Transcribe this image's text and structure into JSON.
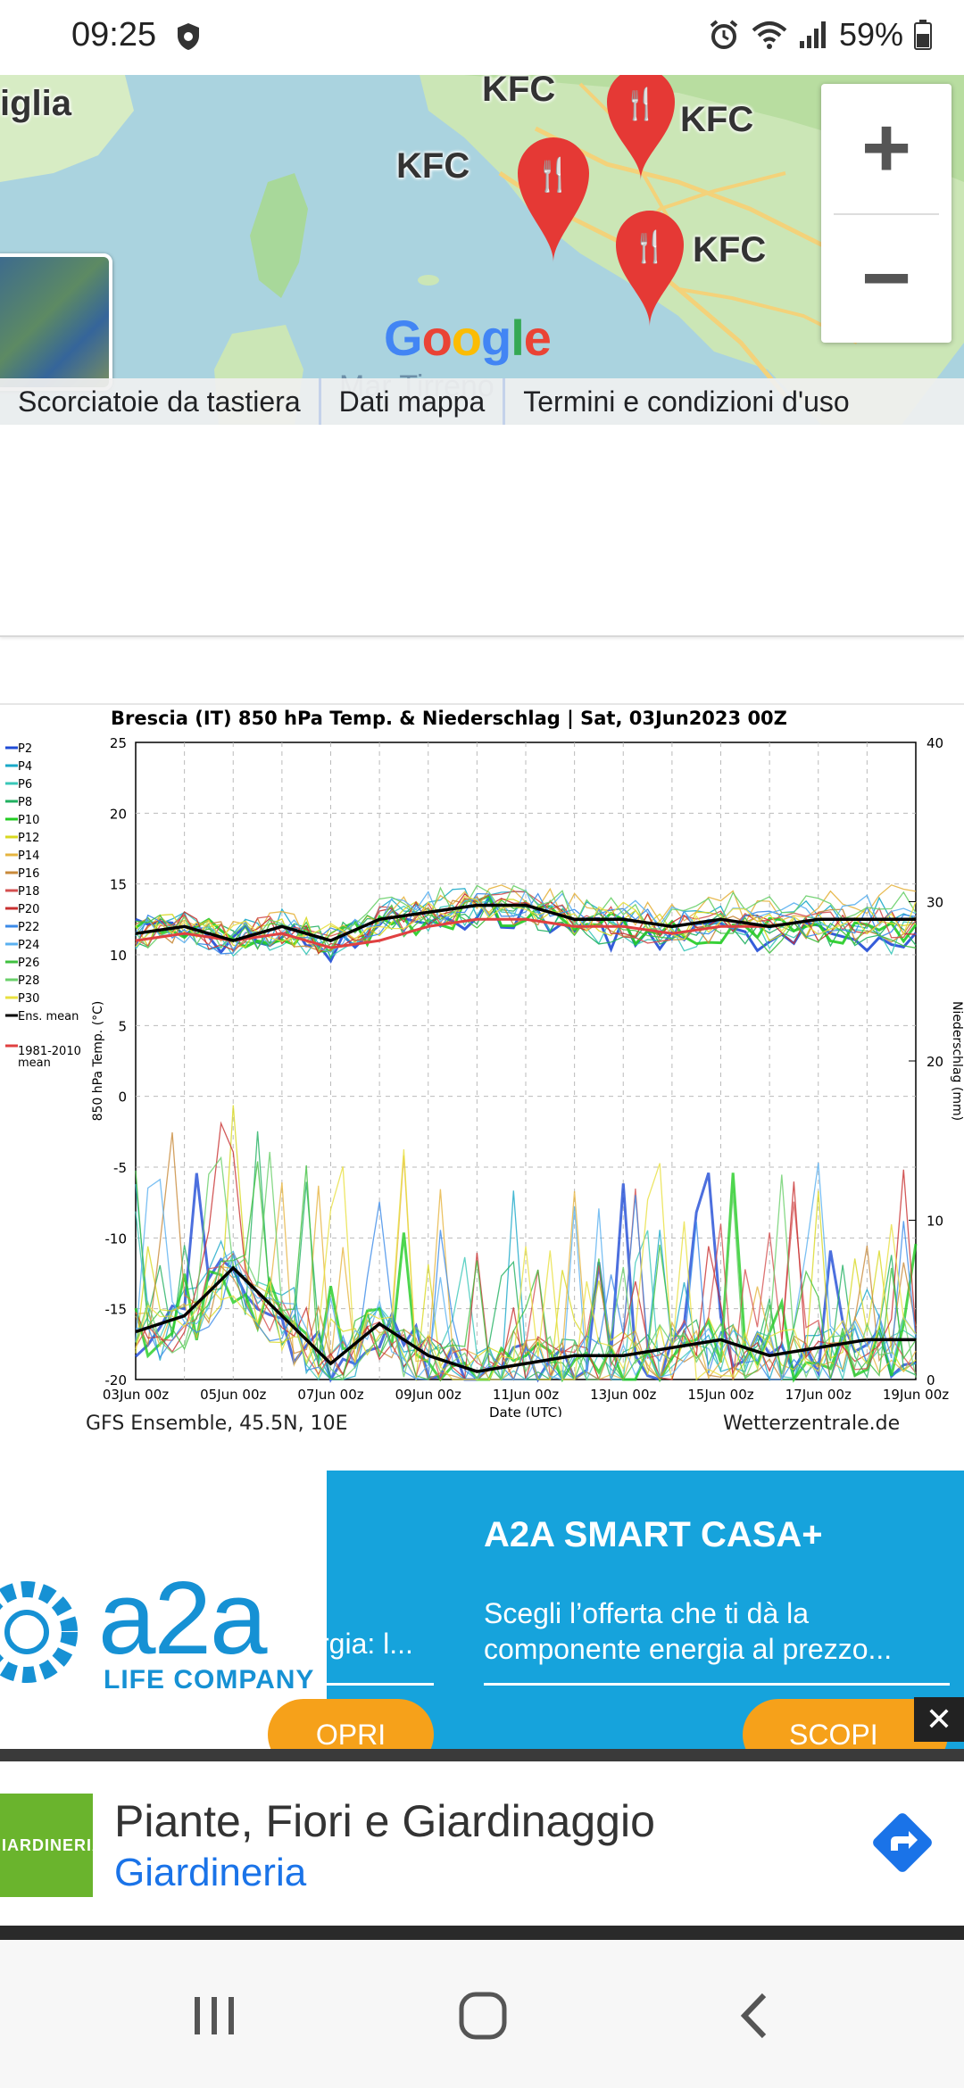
{
  "status_bar": {
    "time": "09:25",
    "battery": "59%"
  },
  "map": {
    "labels": {
      "region_left": "iglia",
      "sea": "Mar Tirreno",
      "google": "Google"
    },
    "pins": [
      "KFC",
      "KFC",
      "KFC",
      "KFC"
    ],
    "zoom_in": "+",
    "zoom_out": "−",
    "attribution": [
      "Scorciatoie da tastiera",
      "Dati mappa",
      "Termini e condizioni d'uso"
    ]
  },
  "chart": {
    "title": "Brescia  (IT)  850 hPa Temp. & Niederschlag | Sat, 03Jun2023 00Z",
    "footer_left": "GFS Ensemble, 45.5N, 10E",
    "footer_right": "Wetterzentrale.de"
  },
  "chart_data": {
    "type": "line",
    "title": "Brescia  (IT)  850 hPa Temp. & Niederschlag | Sat, 03Jun2023 00Z",
    "xlabel": "Date (UTC)",
    "ylabel": "850 hPa Temp. (°C)",
    "y2label": "Niederschlag (mm)",
    "ylim": [
      -20,
      25
    ],
    "y2lim": [
      0,
      40
    ],
    "yticks": [
      "25",
      "20",
      "15",
      "10",
      "5",
      "0",
      "-5",
      "-10",
      "-15",
      "-20"
    ],
    "y2ticks": [
      "40",
      "30",
      "20",
      "10",
      "0"
    ],
    "xticks": [
      "03Jun 00z",
      "05Jun 00z",
      "07Jun 00z",
      "09Jun 00z",
      "11Jun 00z",
      "13Jun 00z",
      "15Jun 00z",
      "17Jun 00z",
      "19Jun 00z"
    ],
    "grid": true,
    "legend": [
      "P2",
      "P4",
      "P6",
      "P8",
      "P10",
      "P12",
      "P14",
      "P16",
      "P18",
      "P20",
      "P22",
      "P24",
      "P26",
      "P28",
      "P30",
      "Ens. mean",
      "1981-2010 mean"
    ],
    "legend_placement": "left",
    "x": [
      "03Jun 00z",
      "04Jun 00z",
      "05Jun 00z",
      "06Jun 00z",
      "07Jun 00z",
      "08Jun 00z",
      "09Jun 00z",
      "10Jun 00z",
      "11Jun 00z",
      "12Jun 00z",
      "13Jun 00z",
      "14Jun 00z",
      "15Jun 00z",
      "16Jun 00z",
      "17Jun 00z",
      "18Jun 00z",
      "19Jun 00z"
    ],
    "series": [
      {
        "name": "Ens. mean",
        "axis": "temp",
        "values": [
          11.5,
          12,
          11,
          12,
          11,
          12.5,
          13,
          13.5,
          13.5,
          12.5,
          12.5,
          12,
          12.5,
          12,
          12.5,
          12.5,
          12.5
        ]
      },
      {
        "name": "1981-2010 mean",
        "axis": "temp",
        "values": [
          11,
          11.5,
          11,
          11.5,
          10.5,
          11,
          12,
          12.5,
          12.5,
          12,
          12,
          11.5,
          12,
          12,
          12.5,
          12.5,
          12.5
        ]
      },
      {
        "name": "Ens. mean",
        "axis": "precip",
        "values": [
          3,
          4,
          7,
          4,
          1,
          3.5,
          1.5,
          0.5,
          1,
          1.5,
          1.5,
          2,
          2.5,
          1.5,
          2,
          2.5,
          2.5
        ]
      }
    ],
    "colors": {
      "P2": "#1f4bd6",
      "P4": "#19a8c8",
      "P6": "#39c7b8",
      "P8": "#20b060",
      "P10": "#22cc22",
      "P12": "#d8d820",
      "P14": "#e6b440",
      "P16": "#c88a3a",
      "P18": "#d45050",
      "P20": "#c83030",
      "P22": "#3a8ae8",
      "P24": "#5ab0f0",
      "P26": "#40c040",
      "P28": "#6ad06a",
      "P30": "#e8e040",
      "Ens. mean": "#000000",
      "1981-2010 mean": "#e04040"
    }
  },
  "ad1": {
    "brand": "a2a",
    "brand_sub": "LIFE COMPANY",
    "title": "A2A SMART CASA+",
    "description": "Scegli l’offerta che ti dà la componente energia al prezzo...",
    "mid_text": "rgia: l...",
    "button_a": "OPRI",
    "button_b": "SCOPI",
    "close": "✕"
  },
  "ad2": {
    "logo_text": "GIARDINERIA",
    "title": "Piante, Fiori e Giardinaggio",
    "subtitle": "Giardineria"
  },
  "nav": {
    "recent": "recent-apps",
    "home": "home",
    "back": "back"
  }
}
